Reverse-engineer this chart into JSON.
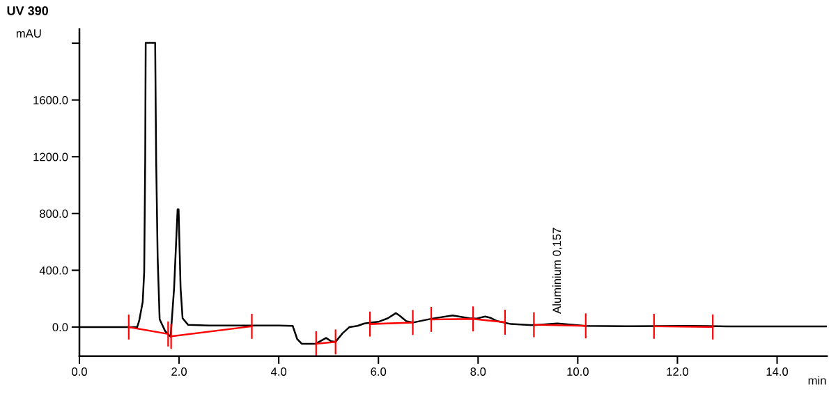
{
  "chart_data": {
    "type": "line",
    "title": "UV 390",
    "ylabel": "mAU",
    "xlabel": "min",
    "xlim": [
      0,
      15.0
    ],
    "ylim": [
      -205,
      2100
    ],
    "xticks": [
      {
        "value": 0,
        "label": "0.0"
      },
      {
        "value": 2,
        "label": "2.0"
      },
      {
        "value": 4,
        "label": "4.0"
      },
      {
        "value": 6,
        "label": "6.0"
      },
      {
        "value": 8,
        "label": "8.0"
      },
      {
        "value": 10,
        "label": "10.0"
      },
      {
        "value": 12,
        "label": "12.0"
      },
      {
        "value": 14,
        "label": "14.0"
      }
    ],
    "yticks": [
      {
        "value": 0,
        "label": "0.0"
      },
      {
        "value": 400,
        "label": "400.0"
      },
      {
        "value": 800,
        "label": "800.0"
      },
      {
        "value": 1200,
        "label": "1200.0"
      },
      {
        "value": 1600,
        "label": "1600.0"
      },
      {
        "value": 2000,
        "label": null
      }
    ],
    "grid": false,
    "legend": false,
    "series": [
      {
        "color": "#000000",
        "marker": "none",
        "x": [
          0,
          1.0,
          1.16,
          1.2,
          1.27,
          1.3,
          1.32,
          1.33,
          1.52,
          1.54,
          1.57,
          1.61,
          1.72,
          1.83,
          1.9,
          1.97,
          1.99,
          2.03,
          2.07,
          2.18,
          2.6,
          4.0,
          4.28,
          4.37,
          4.46,
          4.74,
          4.95,
          5.05,
          5.14,
          5.28,
          5.42,
          5.58,
          5.72,
          6.0,
          6.19,
          6.35,
          6.42,
          6.56,
          6.7,
          7.07,
          7.49,
          7.82,
          7.96,
          8.14,
          8.24,
          8.38,
          8.66,
          9.12,
          9.59,
          10.15,
          11.0,
          12.2,
          13.0,
          15.0
        ],
        "values": [
          0,
          0,
          0,
          45,
          177,
          390,
          1176,
          2003,
          2003,
          1176,
          488,
          55,
          -28,
          -69,
          275,
          829,
          829,
          275,
          62,
          16,
          10,
          10,
          8,
          -85,
          -118,
          -118,
          -77,
          -100,
          -105,
          -44,
          0,
          8,
          25,
          37,
          62,
          98,
          82,
          41,
          32,
          59,
          82,
          62,
          59,
          74,
          66,
          42,
          21,
          13,
          25,
          8,
          6,
          8,
          5,
          5
        ]
      },
      {
        "color": "#ff0000",
        "marker": "none",
        "errors": [
          88,
          88,
          null,
          88,
          88,
          null,
          88,
          88,
          null,
          88,
          88,
          null,
          88,
          88,
          88,
          null,
          88,
          88,
          null,
          88,
          88
        ],
        "x": [
          0.99,
          1.78,
          null,
          1.84,
          3.46,
          null,
          4.75,
          5.14,
          null,
          5.83,
          6.69,
          null,
          7.06,
          7.9,
          8.54,
          null,
          9.12,
          10.16,
          null,
          11.53,
          12.71
        ],
        "values": [
          0,
          -49,
          null,
          -66,
          5,
          null,
          -118,
          -105,
          null,
          21,
          32,
          null,
          54,
          57,
          34,
          null,
          16,
          8,
          null,
          5,
          1
        ]
      }
    ],
    "annotations": [
      {
        "text": "Aluminium 0,157",
        "x": 9.6,
        "y": 25
      }
    ]
  }
}
